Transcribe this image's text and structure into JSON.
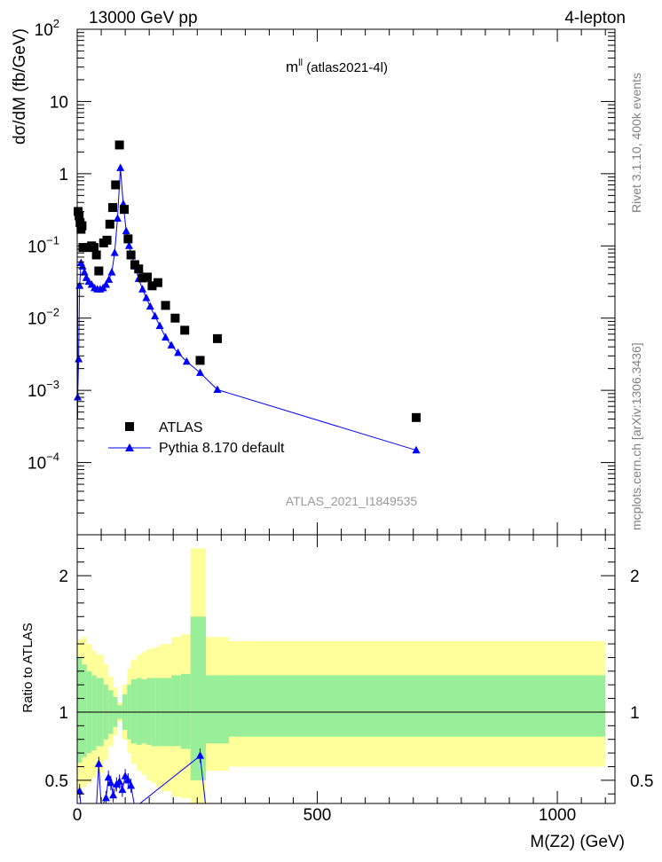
{
  "header": {
    "energy": "13000 GeV pp",
    "process": "4-lepton",
    "rivet": "Rivet 3.1.10,  400k events",
    "mcplots": "mcplots.cern.ch [arXiv:1306.3436]"
  },
  "chart_data": [
    {
      "type": "scatter",
      "title_main": "m",
      "title_sup": "ll",
      "title_rest": " (atlas2021-4l)",
      "ylabel": "dσ/dM (fb/GeV)",
      "y_scale": "log",
      "xlim": [
        0,
        1120
      ],
      "ylim": [
        1e-05,
        100
      ],
      "ytick_labels": [
        {
          "base": "10",
          "exp": "2",
          "value": 100
        },
        {
          "base": "10",
          "exp": "",
          "value": 10
        },
        {
          "base": "1",
          "exp": "",
          "value": 1
        },
        {
          "base": "10",
          "exp": "−1",
          "value": 0.1
        },
        {
          "base": "10",
          "exp": "−2",
          "value": 0.01
        },
        {
          "base": "10",
          "exp": "−3",
          "value": 0.001
        },
        {
          "base": "10",
          "exp": "−4",
          "value": 0.0001
        }
      ],
      "watermark": "ATLAS_2021_I1849535",
      "legend_position": "bottom-left",
      "series": [
        {
          "name": "ATLAS",
          "marker": "square",
          "color": "#000000",
          "points": [
            [
              2,
              0.3
            ],
            [
              4,
              0.26
            ],
            [
              6,
              0.21
            ],
            [
              8,
              0.17
            ],
            [
              10,
              0.19
            ],
            [
              12,
              0.095
            ],
            [
              20,
              0.095
            ],
            [
              30,
              0.1
            ],
            [
              35,
              0.095
            ],
            [
              40,
              0.075
            ],
            [
              45,
              0.045
            ],
            [
              55,
              0.11
            ],
            [
              62,
              0.12
            ],
            [
              68,
              0.2
            ],
            [
              74,
              0.34
            ],
            [
              80,
              0.7
            ],
            [
              88,
              2.5
            ],
            [
              98,
              0.32
            ],
            [
              106,
              0.125
            ],
            [
              112,
              0.075
            ],
            [
              120,
              0.055
            ],
            [
              128,
              0.048
            ],
            [
              136,
              0.036
            ],
            [
              146,
              0.037
            ],
            [
              156,
              0.028
            ],
            [
              168,
              0.031
            ],
            [
              184,
              0.015
            ],
            [
              204,
              0.01
            ],
            [
              224,
              0.0068
            ],
            [
              256,
              0.0026
            ],
            [
              292,
              0.0052
            ],
            [
              706,
              0.00042
            ]
          ]
        },
        {
          "name": "Pythia 8.170 default",
          "marker": "triangle",
          "color": "#0000ff",
          "points": [
            [
              1,
              0.0008
            ],
            [
              3,
              0.0027
            ],
            [
              5,
              0.028
            ],
            [
              8,
              0.058
            ],
            [
              11,
              0.052
            ],
            [
              15,
              0.043
            ],
            [
              19,
              0.036
            ],
            [
              24,
              0.032
            ],
            [
              30,
              0.029
            ],
            [
              36,
              0.026
            ],
            [
              42,
              0.025
            ],
            [
              48,
              0.025
            ],
            [
              54,
              0.026
            ],
            [
              60,
              0.029
            ],
            [
              66,
              0.034
            ],
            [
              72,
              0.043
            ],
            [
              78,
              0.08
            ],
            [
              84,
              0.24
            ],
            [
              90,
              1.2
            ],
            [
              96,
              0.38
            ],
            [
              102,
              0.16
            ],
            [
              108,
              0.1
            ],
            [
              114,
              0.072
            ],
            [
              120,
              0.052
            ],
            [
              128,
              0.035
            ],
            [
              136,
              0.025
            ],
            [
              144,
              0.019
            ],
            [
              152,
              0.0145
            ],
            [
              162,
              0.0106
            ],
            [
              172,
              0.0078
            ],
            [
              184,
              0.0054
            ],
            [
              196,
              0.0042
            ],
            [
              210,
              0.0033
            ],
            [
              228,
              0.0025
            ],
            [
              256,
              0.00175
            ],
            [
              292,
              0.00102
            ],
            [
              706,
              0.000148
            ]
          ]
        }
      ]
    },
    {
      "type": "ratio",
      "ylabel": "Ratio to ATLAS",
      "xlabel": "M(Z2) (GeV)",
      "xlim": [
        0,
        1120
      ],
      "ylim": [
        0.33,
        2.3
      ],
      "xtick_labels": [
        {
          "label": "0",
          "value": 0
        },
        {
          "label": "500",
          "value": 500
        },
        {
          "label": "1000",
          "value": 1000
        }
      ],
      "ytick_labels": [
        {
          "label": "2",
          "value": 2
        },
        {
          "label": "1",
          "value": 1
        },
        {
          "label": "0.5",
          "value": 0.5
        }
      ],
      "reference_line": 1,
      "band_colors": {
        "stat": "#99ee99",
        "total": "#ffff99"
      },
      "bands": [
        {
          "x0": 0,
          "x1": 10,
          "green": [
            0.63,
            1.4
          ],
          "yellow": [
            0.41,
            1.53
          ]
        },
        {
          "x0": 10,
          "x1": 20,
          "green": [
            0.67,
            1.35
          ],
          "yellow": [
            0.45,
            1.55
          ]
        },
        {
          "x0": 20,
          "x1": 30,
          "green": [
            0.7,
            1.3
          ],
          "yellow": [
            0.48,
            1.5
          ]
        },
        {
          "x0": 30,
          "x1": 40,
          "green": [
            0.72,
            1.27
          ],
          "yellow": [
            0.52,
            1.45
          ]
        },
        {
          "x0": 40,
          "x1": 55,
          "green": [
            0.75,
            1.25
          ],
          "yellow": [
            0.55,
            1.42
          ]
        },
        {
          "x0": 55,
          "x1": 65,
          "green": [
            0.8,
            1.2
          ],
          "yellow": [
            0.65,
            1.35
          ]
        },
        {
          "x0": 65,
          "x1": 75,
          "green": [
            0.84,
            1.16
          ],
          "yellow": [
            0.75,
            1.26
          ]
        },
        {
          "x0": 75,
          "x1": 84,
          "green": [
            0.89,
            1.11
          ],
          "yellow": [
            0.83,
            1.18
          ]
        },
        {
          "x0": 84,
          "x1": 94,
          "green": [
            0.95,
            1.05
          ],
          "yellow": [
            0.93,
            1.07
          ]
        },
        {
          "x0": 94,
          "x1": 104,
          "green": [
            0.87,
            1.13
          ],
          "yellow": [
            0.8,
            1.2
          ]
        },
        {
          "x0": 104,
          "x1": 112,
          "green": [
            0.8,
            1.2
          ],
          "yellow": [
            0.7,
            1.32
          ]
        },
        {
          "x0": 112,
          "x1": 124,
          "green": [
            0.77,
            1.24
          ],
          "yellow": [
            0.62,
            1.38
          ]
        },
        {
          "x0": 124,
          "x1": 134,
          "green": [
            0.76,
            1.25
          ],
          "yellow": [
            0.57,
            1.42
          ]
        },
        {
          "x0": 134,
          "x1": 144,
          "green": [
            0.77,
            1.24
          ],
          "yellow": [
            0.54,
            1.44
          ]
        },
        {
          "x0": 144,
          "x1": 154,
          "green": [
            0.76,
            1.25
          ],
          "yellow": [
            0.5,
            1.46
          ]
        },
        {
          "x0": 154,
          "x1": 164,
          "green": [
            0.75,
            1.25
          ],
          "yellow": [
            0.48,
            1.47
          ]
        },
        {
          "x0": 164,
          "x1": 174,
          "green": [
            0.75,
            1.25
          ],
          "yellow": [
            0.45,
            1.48
          ]
        },
        {
          "x0": 174,
          "x1": 196,
          "green": [
            0.75,
            1.25
          ],
          "yellow": [
            0.42,
            1.5
          ]
        },
        {
          "x0": 196,
          "x1": 216,
          "green": [
            0.75,
            1.27
          ],
          "yellow": [
            0.38,
            1.55
          ]
        },
        {
          "x0": 216,
          "x1": 236,
          "green": [
            0.73,
            1.28
          ],
          "yellow": [
            0.37,
            1.57
          ]
        },
        {
          "x0": 236,
          "x1": 268,
          "green": [
            0.5,
            1.7
          ],
          "yellow": [
            0.33,
            2.2
          ]
        },
        {
          "x0": 268,
          "x1": 316,
          "green": [
            0.77,
            1.27
          ],
          "yellow": [
            0.57,
            1.55
          ]
        },
        {
          "x0": 316,
          "x1": 1100,
          "green": [
            0.82,
            1.27
          ],
          "yellow": [
            0.6,
            1.52
          ]
        }
      ],
      "ratio_points": [
        [
          5,
          0.42
        ],
        [
          8,
          0.3
        ],
        [
          16,
          0.28
        ],
        [
          30,
          0.26
        ],
        [
          40,
          0.3
        ],
        [
          45,
          0.62
        ],
        [
          50,
          0.3
        ],
        [
          60,
          0.37
        ],
        [
          65,
          0.52
        ],
        [
          70,
          0.48
        ],
        [
          75,
          0.39
        ],
        [
          82,
          0.47
        ],
        [
          88,
          0.49
        ],
        [
          94,
          0.43
        ],
        [
          100,
          0.53
        ],
        [
          106,
          0.5
        ],
        [
          112,
          0.46
        ],
        [
          120,
          0.3
        ],
        [
          256,
          0.68
        ],
        [
          268,
          0.3
        ]
      ]
    }
  ]
}
